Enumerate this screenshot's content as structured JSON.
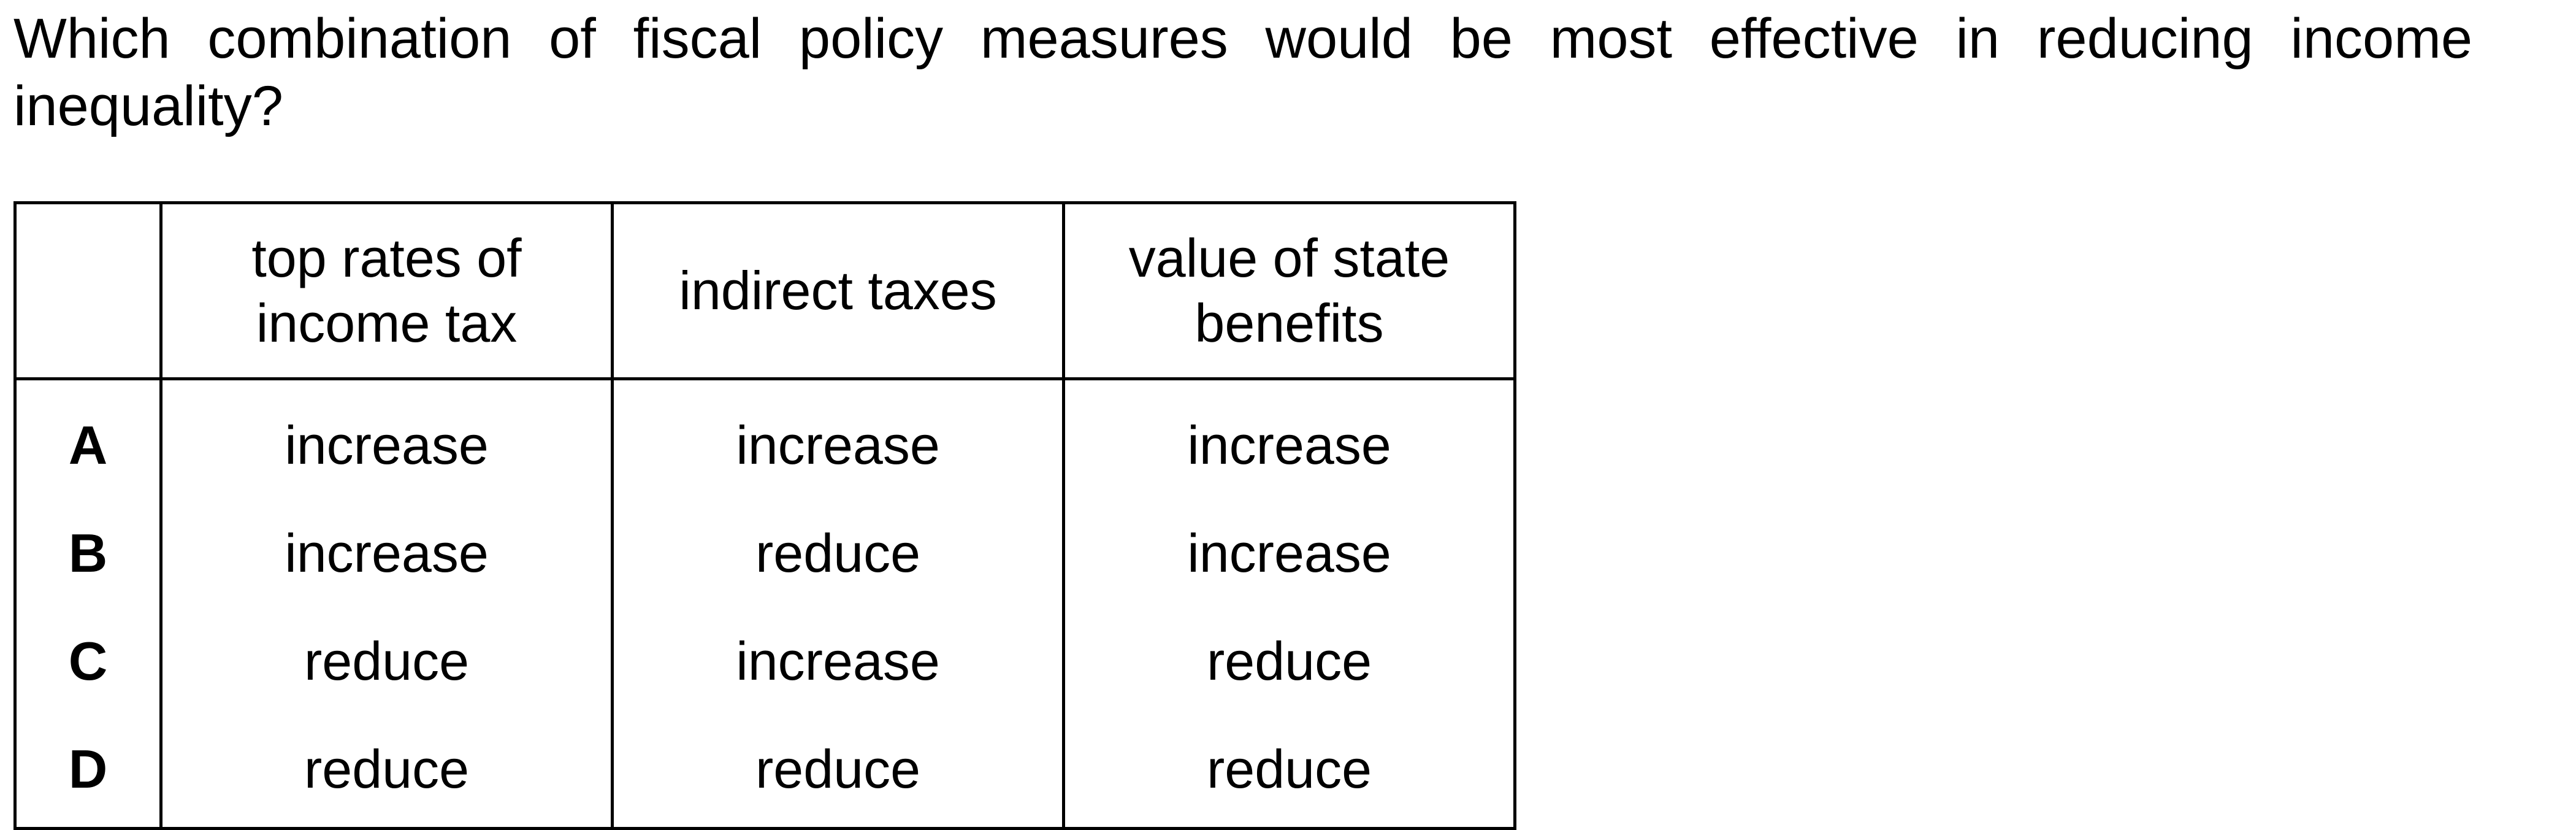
{
  "question": "Which combination of fiscal policy measures would be most effective in reducing income inequality?",
  "table": {
    "headers": [
      "",
      "top rates of income tax",
      "indirect taxes",
      "value of state benefits"
    ],
    "rows": [
      {
        "option": "A",
        "cells": [
          "increase",
          "increase",
          "increase"
        ]
      },
      {
        "option": "B",
        "cells": [
          "increase",
          "reduce",
          "increase"
        ]
      },
      {
        "option": "C",
        "cells": [
          "reduce",
          "increase",
          "reduce"
        ]
      },
      {
        "option": "D",
        "cells": [
          "reduce",
          "reduce",
          "reduce"
        ]
      }
    ]
  }
}
